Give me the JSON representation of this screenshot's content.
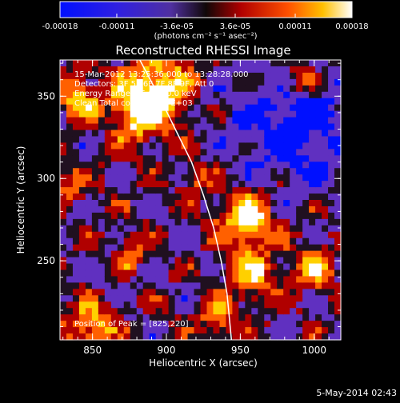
{
  "colorbar": {
    "ticks": [
      "-0.00018",
      "-0.00011",
      "-3.6e-05",
      "3.6e-05",
      "0.00011",
      "0.00018"
    ],
    "tick_values": [
      -0.00018,
      -0.00011,
      -3.6e-05,
      3.6e-05,
      0.00011,
      0.00018
    ],
    "range": [
      -0.00018,
      0.00018
    ],
    "units_label": "(photons cm⁻² s⁻¹ asec⁻²)"
  },
  "chart_data": {
    "type": "heatmap",
    "title": "Reconstructed RHESSI Image",
    "xlabel": "Heliocentric X (arcsec)",
    "ylabel": "Heliocentric Y (arcsec)",
    "xlim": [
      828,
      1018
    ],
    "ylim": [
      202,
      372
    ],
    "xticks": [
      "850",
      "900",
      "950",
      "1000"
    ],
    "xtick_values": [
      850,
      900,
      950,
      1000
    ],
    "yticks": [
      "250",
      "300",
      "350"
    ],
    "ytick_values": [
      250,
      300,
      350
    ],
    "limb_curve": [
      [
        882,
        372
      ],
      [
        895,
        350
      ],
      [
        906,
        330
      ],
      [
        917,
        310
      ],
      [
        925,
        290
      ],
      [
        932,
        270
      ],
      [
        937,
        250
      ],
      [
        941,
        230
      ],
      [
        944,
        202
      ]
    ],
    "peak_position": [
      825,
      220
    ],
    "colormap_colors": [
      "#0010ff",
      "#6030c0",
      "#201020",
      "#b00000",
      "#ff6000",
      "#ffd000",
      "#ffffff"
    ],
    "annotations": [
      "15-Mar-2012 13:25:36.000 to 13:28:28.000",
      "Detectors: 3F 5F 6F 7F 8F 9F, Att 0",
      "Energy Range: 25.0 - 50.0 keV",
      "Clean    Total counts: 3.07E+03"
    ],
    "peak_text": "Position of Peak = [825,220]"
  },
  "footer": {
    "date": "5-May-2014 02:43"
  }
}
